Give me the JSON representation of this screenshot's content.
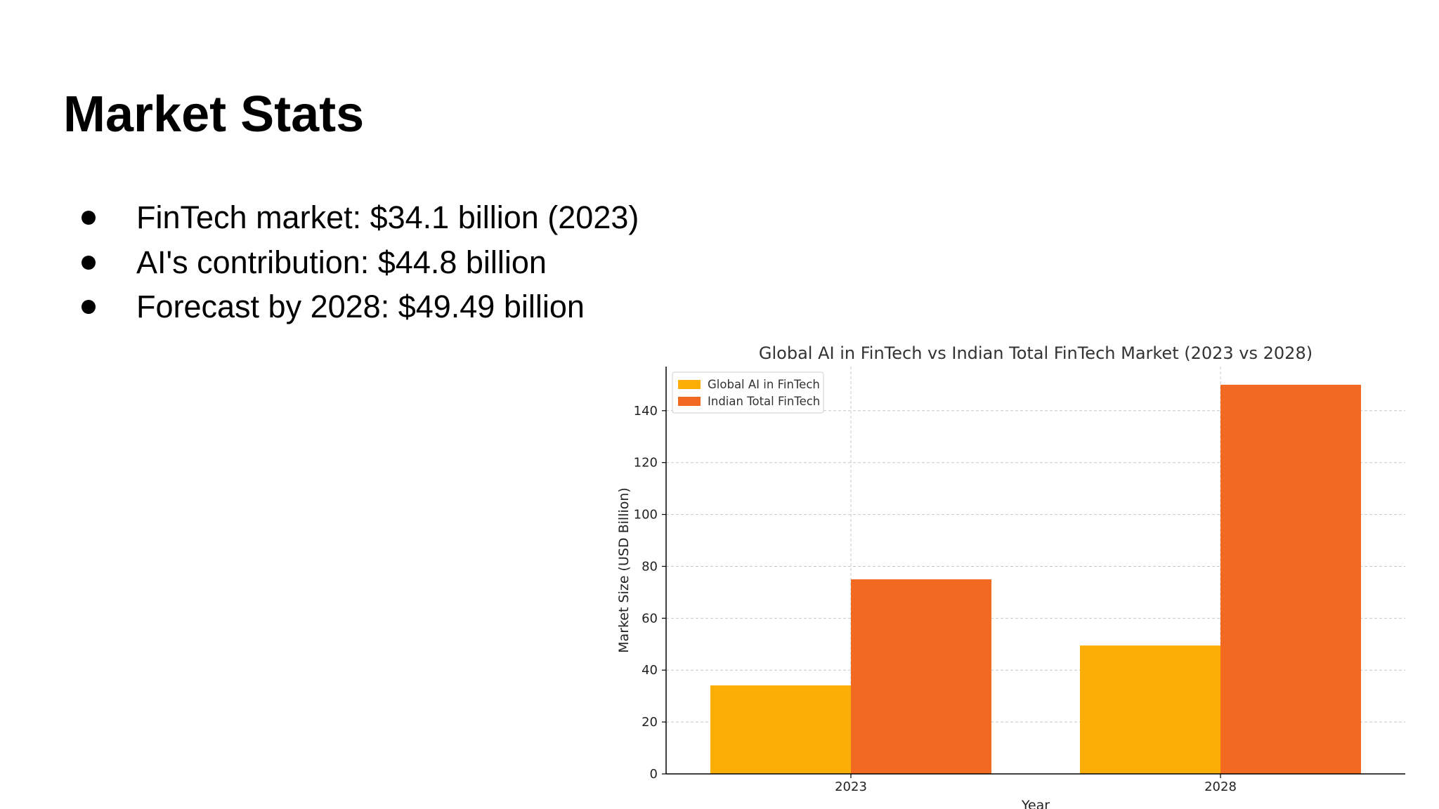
{
  "slide": {
    "title": "Market Stats",
    "bullets": [
      "FinTech market: $34.1 billion (2023)",
      "AI's contribution: $44.8 billion",
      "Forecast by 2028: $49.49 billion"
    ]
  },
  "chart_data": {
    "type": "bar",
    "title": "Global AI in FinTech vs Indian Total FinTech Market (2023 vs 2028)",
    "xlabel": "Year",
    "ylabel": "Market Size (USD Billion)",
    "categories": [
      "2023",
      "2028"
    ],
    "series": [
      {
        "name": "Global AI in FinTech",
        "values": [
          34.1,
          49.49
        ],
        "color": "#FDAE04"
      },
      {
        "name": "Indian Total FinTech",
        "values": [
          75,
          150
        ],
        "color": "#F26A21"
      }
    ],
    "ylim": [
      0,
      157
    ],
    "yticks": [
      0,
      20,
      40,
      60,
      80,
      100,
      120,
      140
    ],
    "grid": true,
    "legend_position": "top-left"
  }
}
